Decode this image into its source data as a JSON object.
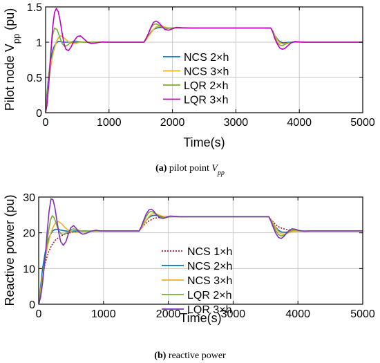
{
  "chart_data": [
    {
      "type": "line",
      "caption_tag": "(a)",
      "caption_text": "pilot point ",
      "caption_var": "V",
      "caption_sub": "pp",
      "ylabel_main": "Pilot node V",
      "ylabel_sub": "pp",
      "ylabel_unit": " (pu)",
      "xlabel": "Time(s)",
      "xlim": [
        0,
        5000
      ],
      "ylim": [
        0,
        1.5
      ],
      "xticks": [
        "0",
        "1000",
        "2000",
        "3000",
        "4000",
        "5000"
      ],
      "yticks": [
        "0",
        "0.5",
        "1",
        "1.5"
      ],
      "xtick_values": [
        0,
        1000,
        2000,
        3000,
        4000,
        5000
      ],
      "ytick_values": [
        0,
        0.5,
        1,
        1.5
      ],
      "grid": true,
      "legend_position": "center",
      "series": [
        {
          "name": "NCS 2×h",
          "color": "#0072BD",
          "style": "solid",
          "x": [
            0,
            20,
            50,
            80,
            110,
            140,
            170,
            200,
            240,
            280,
            330,
            400,
            500,
            700,
            1000,
            1550,
            1580,
            1620,
            1660,
            1700,
            1750,
            1800,
            1850,
            1950,
            2100,
            2500,
            3550,
            3580,
            3610,
            3650,
            3690,
            3740,
            3800,
            3850,
            3950,
            4200,
            5000
          ],
          "y": [
            0,
            0.25,
            0.55,
            0.75,
            0.88,
            0.95,
            0.99,
            1.01,
            1.01,
            1.0,
            1.0,
            1.0,
            1.0,
            1.0,
            1.0,
            1.0,
            1.04,
            1.09,
            1.14,
            1.18,
            1.2,
            1.21,
            1.205,
            1.2,
            1.2,
            1.2,
            1.2,
            1.16,
            1.1,
            1.05,
            1.01,
            0.99,
            0.995,
            1.0,
            1.0,
            1.0,
            1.0
          ]
        },
        {
          "name": "NCS 3×h",
          "color": "#EDB120",
          "style": "solid",
          "x": [
            0,
            20,
            50,
            80,
            120,
            160,
            200,
            240,
            280,
            330,
            380,
            450,
            550,
            700,
            1000,
            1550,
            1580,
            1620,
            1660,
            1700,
            1750,
            1800,
            1860,
            1920,
            2000,
            2150,
            2500,
            3550,
            3580,
            3610,
            3650,
            3690,
            3740,
            3790,
            3850,
            3920,
            4000,
            4200,
            5000
          ],
          "y": [
            0,
            0.2,
            0.45,
            0.65,
            0.85,
            0.98,
            1.06,
            1.09,
            1.07,
            1.03,
            0.99,
            0.98,
            1.0,
            1.0,
            1.0,
            1.0,
            1.03,
            1.08,
            1.13,
            1.18,
            1.22,
            1.23,
            1.22,
            1.205,
            1.2,
            1.2,
            1.2,
            1.2,
            1.16,
            1.1,
            1.04,
            0.99,
            0.975,
            0.98,
            0.995,
            1.0,
            1.0,
            1.0,
            1.0
          ]
        },
        {
          "name": "LQR 2×h",
          "color": "#77AC30",
          "style": "solid",
          "x": [
            0,
            20,
            50,
            80,
            110,
            140,
            180,
            220,
            260,
            300,
            350,
            400,
            450,
            520,
            600,
            700,
            850,
            1000,
            1550,
            1580,
            1620,
            1660,
            1700,
            1740,
            1790,
            1840,
            1900,
            1970,
            2050,
            2200,
            2500,
            3550,
            3580,
            3610,
            3650,
            3690,
            3730,
            3780,
            3830,
            3900,
            3980,
            4100,
            5000
          ],
          "y": [
            0,
            0.2,
            0.5,
            0.85,
            1.1,
            1.2,
            1.18,
            1.08,
            0.98,
            0.94,
            0.96,
            1.0,
            1.02,
            1.01,
            1.0,
            1.0,
            1.0,
            1.0,
            1.0,
            1.05,
            1.12,
            1.2,
            1.25,
            1.26,
            1.24,
            1.21,
            1.19,
            1.2,
            1.205,
            1.2,
            1.2,
            1.2,
            1.15,
            1.08,
            1.0,
            0.96,
            0.95,
            0.97,
            0.99,
            1.005,
            1.0,
            1.0,
            1.0
          ]
        },
        {
          "name": "LQR 3×h",
          "color": "#C000C0",
          "style": "solid",
          "x": [
            0,
            20,
            50,
            80,
            110,
            140,
            170,
            200,
            230,
            260,
            290,
            320,
            360,
            400,
            450,
            500,
            550,
            600,
            660,
            720,
            800,
            900,
            1000,
            1550,
            1580,
            1620,
            1660,
            1700,
            1740,
            1780,
            1830,
            1880,
            1940,
            2000,
            2060,
            2150,
            2300,
            2500,
            3550,
            3580,
            3610,
            3650,
            3690,
            3730,
            3770,
            3820,
            3870,
            3930,
            4000,
            4100,
            4250,
            5000
          ],
          "y": [
            0,
            0.1,
            0.4,
            0.8,
            1.2,
            1.42,
            1.48,
            1.43,
            1.3,
            1.13,
            0.98,
            0.9,
            0.88,
            0.93,
            1.02,
            1.08,
            1.09,
            1.05,
            1.0,
            0.98,
            0.99,
            1.005,
            1.0,
            1.0,
            1.04,
            1.12,
            1.21,
            1.28,
            1.3,
            1.28,
            1.23,
            1.18,
            1.17,
            1.19,
            1.21,
            1.205,
            1.2,
            1.2,
            1.2,
            1.15,
            1.06,
            0.98,
            0.92,
            0.9,
            0.91,
            0.95,
            0.99,
            1.01,
            1.005,
            1.0,
            1.0,
            1.0
          ]
        }
      ]
    },
    {
      "type": "line",
      "caption_tag": "(b)",
      "caption_text": "reactive power",
      "ylabel_main": "Reactive power (pu)",
      "xlabel": "Time(s)",
      "xlim": [
        0,
        5000
      ],
      "ylim": [
        0,
        30
      ],
      "xticks": [
        "0",
        "1000",
        "2000",
        "3000",
        "4000",
        "5000"
      ],
      "yticks": [
        "0",
        "10",
        "20",
        "30"
      ],
      "xtick_values": [
        0,
        1000,
        2000,
        3000,
        4000,
        5000
      ],
      "ytick_values": [
        0,
        10,
        20,
        30
      ],
      "grid": true,
      "legend_position": "center",
      "series": [
        {
          "name": "NCS 1×h",
          "color": "#A2142F",
          "style": "dotted",
          "x": [
            0,
            30,
            60,
            100,
            150,
            200,
            260,
            330,
            400,
            500,
            600,
            700,
            800,
            950,
            1100,
            1300,
            1550,
            1600,
            1650,
            1700,
            1760,
            1830,
            1900,
            2000,
            2100,
            2300,
            2600,
            3550,
            3600,
            3650,
            3700,
            3760,
            3830,
            3900,
            4000,
            4150,
            4350,
            5000
          ],
          "y": [
            0,
            4,
            8,
            11.5,
            14.5,
            16.5,
            18,
            19,
            19.6,
            20.1,
            20.3,
            20.4,
            20.45,
            20.5,
            20.5,
            20.5,
            20.5,
            21.6,
            22.6,
            23.3,
            23.9,
            24.2,
            24.4,
            24.5,
            24.5,
            24.5,
            24.5,
            24.5,
            23.4,
            22.4,
            21.7,
            21.2,
            20.9,
            20.7,
            20.6,
            20.5,
            20.5,
            20.5
          ]
        },
        {
          "name": "NCS 2×h",
          "color": "#0072BD",
          "style": "solid",
          "x": [
            0,
            30,
            60,
            100,
            140,
            180,
            220,
            260,
            310,
            380,
            460,
            560,
            700,
            900,
            1100,
            1550,
            1580,
            1620,
            1660,
            1700,
            1750,
            1800,
            1860,
            1930,
            2020,
            2200,
            2600,
            3550,
            3580,
            3620,
            3660,
            3700,
            3750,
            3810,
            3880,
            3960,
            4100,
            5000
          ],
          "y": [
            0,
            5,
            10,
            14.5,
            17.5,
            19.5,
            20.6,
            21,
            20.9,
            20.6,
            20.4,
            20.5,
            20.5,
            20.5,
            20.5,
            20.5,
            21.3,
            22.4,
            23.5,
            24.3,
            24.8,
            24.9,
            24.7,
            24.5,
            24.5,
            24.5,
            24.5,
            24.5,
            23.7,
            22.6,
            21.5,
            20.7,
            20.2,
            20.15,
            20.3,
            20.45,
            20.5,
            20.5
          ]
        },
        {
          "name": "NCS 3×h",
          "color": "#EDB120",
          "style": "solid",
          "x": [
            0,
            30,
            60,
            100,
            140,
            180,
            220,
            260,
            300,
            350,
            410,
            480,
            560,
            660,
            800,
            1000,
            1550,
            1580,
            1620,
            1660,
            1700,
            1740,
            1790,
            1840,
            1900,
            1970,
            2050,
            2200,
            2600,
            3550,
            3580,
            3620,
            3660,
            3700,
            3740,
            3790,
            3840,
            3900,
            3970,
            4050,
            4200,
            5000
          ],
          "y": [
            0,
            4,
            8,
            12.5,
            16.5,
            19.5,
            21.5,
            22.8,
            23.2,
            22.6,
            21.4,
            20.4,
            20.1,
            20.3,
            20.5,
            20.5,
            20.5,
            21.2,
            22.3,
            23.5,
            24.5,
            25.2,
            25.4,
            25.1,
            24.7,
            24.4,
            24.5,
            24.5,
            24.5,
            24.5,
            23.8,
            22.6,
            21.3,
            20.3,
            19.7,
            19.6,
            19.9,
            20.3,
            20.5,
            20.5,
            20.5,
            20.5
          ]
        },
        {
          "name": "LQR 2×h",
          "color": "#77AC30",
          "style": "solid",
          "x": [
            0,
            30,
            60,
            100,
            140,
            180,
            210,
            240,
            270,
            300,
            340,
            380,
            430,
            480,
            540,
            600,
            680,
            760,
            860,
            1000,
            1550,
            1580,
            1620,
            1660,
            1700,
            1740,
            1780,
            1830,
            1880,
            1940,
            2000,
            2070,
            2150,
            2300,
            2600,
            3550,
            3580,
            3620,
            3660,
            3700,
            3740,
            3780,
            3830,
            3880,
            3940,
            4000,
            4080,
            4200,
            5000
          ],
          "y": [
            0,
            3,
            7,
            13,
            19,
            23.5,
            24.8,
            24.2,
            22.6,
            21,
            19.8,
            19.5,
            20,
            20.8,
            21.1,
            20.8,
            20.4,
            20.4,
            20.5,
            20.5,
            20.5,
            21.4,
            23,
            24.6,
            25.7,
            26,
            25.6,
            24.9,
            24.3,
            24.2,
            24.4,
            24.6,
            24.5,
            24.5,
            24.5,
            24.5,
            23.6,
            22.1,
            20.6,
            19.5,
            19.1,
            19.3,
            19.9,
            20.5,
            20.8,
            20.7,
            20.5,
            20.5,
            20.5
          ]
        },
        {
          "name": "LQR 3×h",
          "color": "#7E2FB8",
          "style": "solid",
          "x": [
            0,
            30,
            60,
            100,
            130,
            160,
            190,
            220,
            250,
            280,
            310,
            340,
            380,
            420,
            460,
            500,
            540,
            580,
            630,
            680,
            740,
            800,
            880,
            960,
            1050,
            1200,
            1550,
            1580,
            1620,
            1660,
            1700,
            1740,
            1780,
            1820,
            1870,
            1920,
            1970,
            2030,
            2100,
            2200,
            2350,
            2600,
            3550,
            3580,
            3620,
            3660,
            3700,
            3740,
            3780,
            3820,
            3860,
            3910,
            3960,
            4020,
            4100,
            4200,
            4350,
            5000
          ],
          "y": [
            0,
            2,
            6,
            13,
            20,
            26,
            29.5,
            29.3,
            27,
            23.5,
            20,
            17.5,
            16.5,
            17.5,
            19.8,
            21.5,
            22,
            21.2,
            20.1,
            19.6,
            19.9,
            20.4,
            20.7,
            20.5,
            20.5,
            20.5,
            20.5,
            21.6,
            23.5,
            25.3,
            26.4,
            26.6,
            26,
            25,
            24.2,
            24,
            24.3,
            24.7,
            24.6,
            24.5,
            24.5,
            24.5,
            24.5,
            23.4,
            21.5,
            19.8,
            18.7,
            18.4,
            18.9,
            19.8,
            20.6,
            21.1,
            21,
            20.6,
            20.4,
            20.5,
            20.5,
            20.5
          ]
        }
      ]
    }
  ]
}
